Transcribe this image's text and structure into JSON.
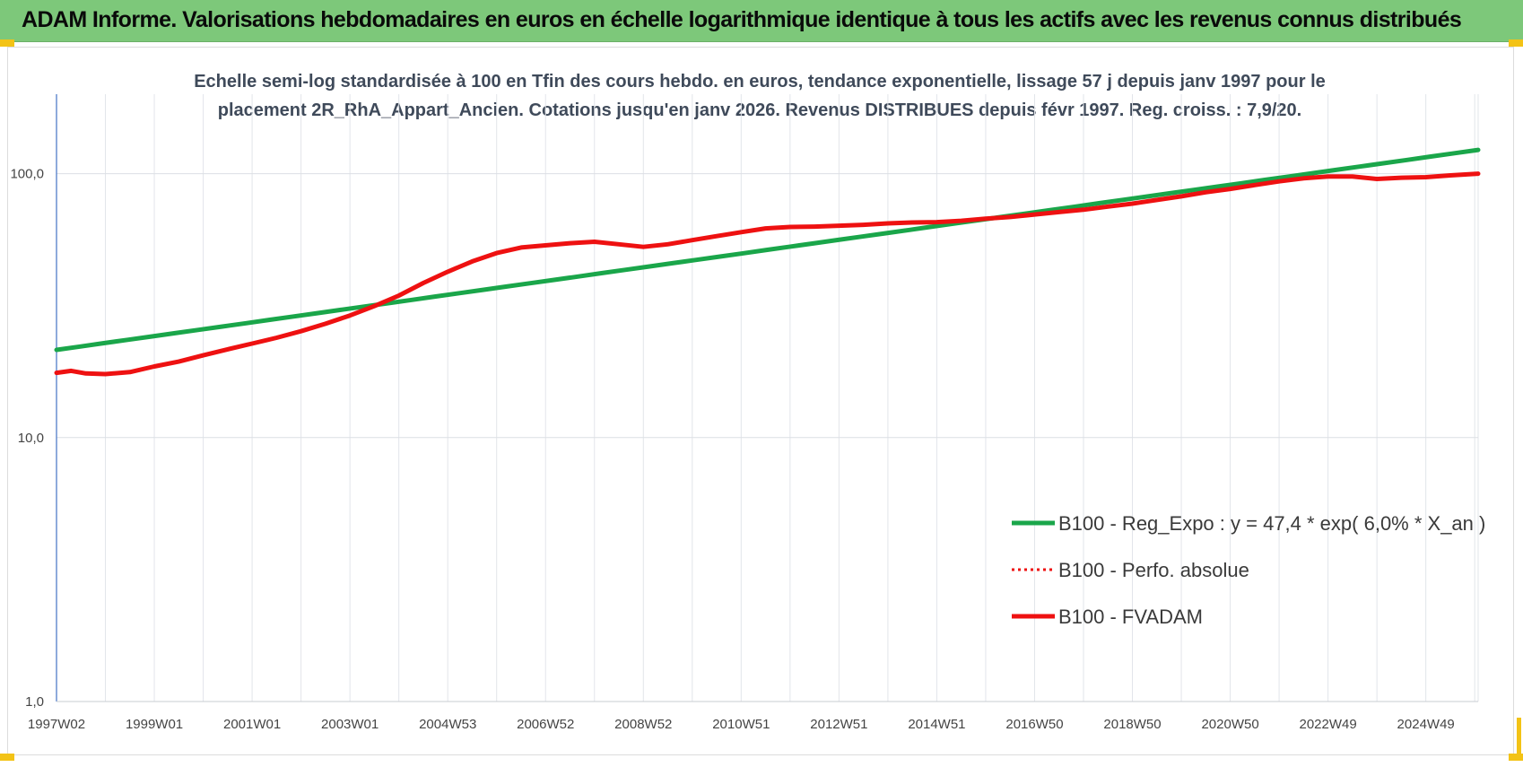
{
  "header": {
    "title": "ADAM Informe. Valorisations hebdomadaires en euros en échelle logarithmique identique à tous les actifs avec les revenus connus distribués"
  },
  "colors": {
    "header_bg": "#7dc87a",
    "accent_corner": "#f3c316",
    "reg_line": "#1aa64a",
    "fvadam_line": "#ee1111",
    "perfo_line": "#ee1111"
  },
  "chart_data": {
    "type": "line",
    "title_lines": [
      "Echelle semi-log standardisée à 100 en Tfin des cours hebdo. en euros, tendance exponentielle, lissage 57 j depuis janv 1997 pour le",
      "placement 2R_RhA_Appart_Ancien. Cotations jusqu'en janv 2026. Revenus DISTRIBUES depuis févr 1997. Reg. croiss. : 7,9/20."
    ],
    "y_scale": "log",
    "ylim": [
      1,
      200
    ],
    "y_ticks": [
      {
        "value": 100,
        "label": "100,0"
      },
      {
        "value": 10,
        "label": "10,0"
      },
      {
        "value": 1,
        "label": "1,0"
      }
    ],
    "x_range": [
      1997.0,
      2026.07
    ],
    "x_ticks": [
      {
        "x": 1997.0,
        "label": "1997W02"
      },
      {
        "x": 1999.0,
        "label": "1999W01"
      },
      {
        "x": 2001.0,
        "label": "2001W01"
      },
      {
        "x": 2003.0,
        "label": "2003W01"
      },
      {
        "x": 2005.0,
        "label": "2004W53"
      },
      {
        "x": 2007.0,
        "label": "2006W52"
      },
      {
        "x": 2009.0,
        "label": "2008W52"
      },
      {
        "x": 2011.0,
        "label": "2010W51"
      },
      {
        "x": 2013.0,
        "label": "2012W51"
      },
      {
        "x": 2015.0,
        "label": "2014W51"
      },
      {
        "x": 2017.0,
        "label": "2016W50"
      },
      {
        "x": 2019.0,
        "label": "2018W50"
      },
      {
        "x": 2021.0,
        "label": "2020W50"
      },
      {
        "x": 2023.0,
        "label": "2022W49"
      },
      {
        "x": 2025.0,
        "label": "2024W49"
      }
    ],
    "grid": true,
    "legend_position": "bottom-right",
    "series": [
      {
        "name": "B100 - Reg_Expo : y = 47,4 * exp( 6,0% *  X_an )",
        "style": "solid",
        "color": "#1aa64a",
        "points": [
          [
            1997.0,
            21.5
          ],
          [
            2026.07,
            123
          ]
        ]
      },
      {
        "name": "B100 - Perfo. absolue",
        "style": "dotted",
        "color": "#ee1111",
        "points": []
      },
      {
        "name": "B100 - FVADAM",
        "style": "solid",
        "color": "#ee1111",
        "points": [
          [
            1997.0,
            17.6
          ],
          [
            1997.3,
            17.9
          ],
          [
            1997.6,
            17.5
          ],
          [
            1998.0,
            17.4
          ],
          [
            1998.5,
            17.7
          ],
          [
            1999.0,
            18.6
          ],
          [
            1999.5,
            19.4
          ],
          [
            2000.0,
            20.5
          ],
          [
            2000.5,
            21.6
          ],
          [
            2001.0,
            22.7
          ],
          [
            2001.5,
            23.9
          ],
          [
            2002.0,
            25.3
          ],
          [
            2002.5,
            27.0
          ],
          [
            2003.0,
            29.0
          ],
          [
            2003.5,
            31.5
          ],
          [
            2004.0,
            34.5
          ],
          [
            2004.5,
            38.5
          ],
          [
            2005.0,
            42.5
          ],
          [
            2005.5,
            46.5
          ],
          [
            2006.0,
            50.0
          ],
          [
            2006.5,
            52.5
          ],
          [
            2007.0,
            53.5
          ],
          [
            2007.5,
            54.5
          ],
          [
            2008.0,
            55.2
          ],
          [
            2008.5,
            54.0
          ],
          [
            2009.0,
            52.8
          ],
          [
            2009.5,
            54.0
          ],
          [
            2010.0,
            56.0
          ],
          [
            2010.5,
            58.0
          ],
          [
            2011.0,
            60.0
          ],
          [
            2011.5,
            62.0
          ],
          [
            2012.0,
            62.8
          ],
          [
            2012.5,
            63.0
          ],
          [
            2013.0,
            63.5
          ],
          [
            2013.5,
            64.0
          ],
          [
            2014.0,
            64.8
          ],
          [
            2014.5,
            65.3
          ],
          [
            2015.0,
            65.5
          ],
          [
            2015.5,
            66.3
          ],
          [
            2016.0,
            67.5
          ],
          [
            2016.5,
            68.5
          ],
          [
            2017.0,
            70.0
          ],
          [
            2017.5,
            71.5
          ],
          [
            2018.0,
            73.0
          ],
          [
            2018.5,
            75.0
          ],
          [
            2019.0,
            77.0
          ],
          [
            2019.5,
            79.5
          ],
          [
            2020.0,
            82.0
          ],
          [
            2020.5,
            85.0
          ],
          [
            2021.0,
            87.5
          ],
          [
            2021.5,
            90.5
          ],
          [
            2022.0,
            93.5
          ],
          [
            2022.5,
            96.0
          ],
          [
            2023.0,
            97.5
          ],
          [
            2023.5,
            97.5
          ],
          [
            2024.0,
            95.5
          ],
          [
            2024.5,
            96.5
          ],
          [
            2025.0,
            97.0
          ],
          [
            2025.5,
            98.5
          ],
          [
            2026.07,
            100.0
          ]
        ]
      }
    ]
  }
}
